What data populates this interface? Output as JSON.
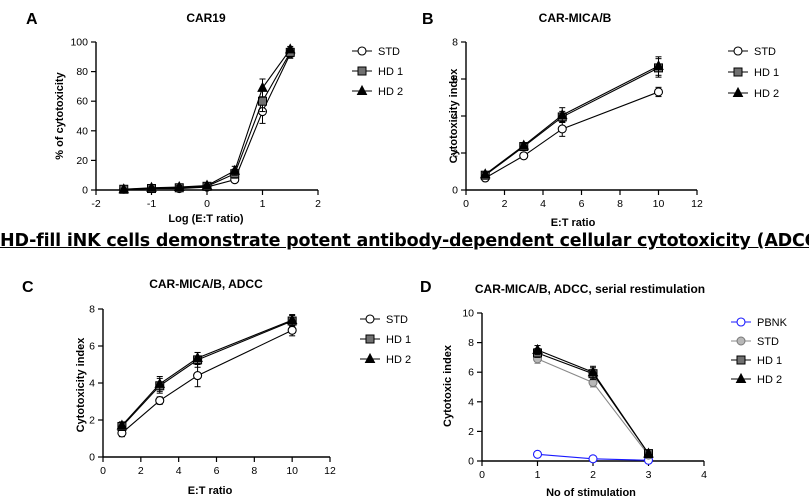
{
  "heading": "HD-fill iNK cells demonstrate potent antibody-dependent cellular cytotoxicity (ADCC)",
  "chart_data": [
    {
      "panel": "A",
      "type": "line",
      "title": "CAR19",
      "xlabel": "Log (E:T ratio)",
      "ylabel": "% of cytotoxicity",
      "xlim": [
        -2,
        2
      ],
      "ylim": [
        0,
        100
      ],
      "xticks": [
        -2,
        -1,
        0,
        1,
        2
      ],
      "yticks": [
        0,
        20,
        40,
        60,
        80,
        100
      ],
      "xtick_labels": [
        "-2",
        "-1",
        "0",
        "1",
        "2"
      ],
      "ytick_labels": [
        "0",
        "20",
        "40",
        "60",
        "80",
        "100"
      ],
      "legend_position": "right",
      "series": [
        {
          "name": "STD",
          "marker": "circle-open",
          "color": "#000000",
          "x": [
            -1.5,
            -1,
            -0.5,
            0,
            0.5,
            1,
            1.5
          ],
          "values": [
            0.5,
            1,
            1,
            2,
            7,
            53,
            92
          ],
          "err": [
            0.5,
            0.5,
            0.5,
            1,
            2,
            8,
            3
          ]
        },
        {
          "name": "HD 1",
          "marker": "square",
          "color": "#000000",
          "x": [
            -1.5,
            -1,
            -0.5,
            0,
            0.5,
            1,
            1.5
          ],
          "values": [
            0.5,
            1,
            1.5,
            2.5,
            11,
            60,
            93
          ],
          "err": [
            0.5,
            0.5,
            0.5,
            1,
            3,
            7,
            3
          ]
        },
        {
          "name": "HD 2",
          "marker": "triangle",
          "color": "#000000",
          "x": [
            -1.5,
            -1,
            -0.5,
            0,
            0.5,
            1,
            1.5
          ],
          "values": [
            0.5,
            1.5,
            2,
            3,
            13,
            69,
            95
          ],
          "err": [
            0.5,
            0.5,
            1,
            1,
            3,
            6,
            2
          ]
        }
      ]
    },
    {
      "panel": "B",
      "type": "line",
      "title": "CAR-MICA/B",
      "xlabel": "E:T ratio",
      "ylabel": "Cytotoxicity index",
      "xlim": [
        0,
        12
      ],
      "ylim": [
        0,
        8
      ],
      "xticks": [
        0,
        2,
        4,
        6,
        8,
        10,
        12
      ],
      "yticks": [
        0,
        2,
        4,
        6,
        8
      ],
      "xtick_labels": [
        "0",
        "2",
        "4",
        "6",
        "8",
        "10",
        "12"
      ],
      "ytick_labels": [
        "0",
        "2",
        "4",
        "6",
        "8"
      ],
      "legend_position": "right",
      "series": [
        {
          "name": "STD",
          "marker": "circle-open",
          "color": "#000000",
          "x": [
            1,
            3,
            5,
            10
          ],
          "values": [
            0.65,
            1.85,
            3.3,
            5.3
          ],
          "err": [
            0.1,
            0.15,
            0.4,
            0.25
          ]
        },
        {
          "name": "HD 1",
          "marker": "square",
          "color": "#000000",
          "x": [
            1,
            3,
            5,
            10
          ],
          "values": [
            0.8,
            2.35,
            3.95,
            6.6
          ],
          "err": [
            0.1,
            0.1,
            0.3,
            0.5
          ]
        },
        {
          "name": "HD 2",
          "marker": "triangle",
          "color": "#000000",
          "x": [
            1,
            3,
            5,
            10
          ],
          "values": [
            0.85,
            2.4,
            4.05,
            6.7
          ],
          "err": [
            0.1,
            0.1,
            0.4,
            0.5
          ]
        }
      ]
    },
    {
      "panel": "C",
      "type": "line",
      "title": "CAR-MICA/B, ADCC",
      "xlabel": "E:T ratio",
      "ylabel": "Cytotoxicity index",
      "xlim": [
        0,
        12
      ],
      "ylim": [
        0,
        8
      ],
      "xticks": [
        0,
        2,
        4,
        6,
        8,
        10,
        12
      ],
      "yticks": [
        0,
        2,
        4,
        6,
        8
      ],
      "xtick_labels": [
        "0",
        "2",
        "4",
        "6",
        "8",
        "10",
        "12"
      ],
      "ytick_labels": [
        "0",
        "2",
        "4",
        "6",
        "8"
      ],
      "legend_position": "right",
      "series": [
        {
          "name": "STD",
          "marker": "circle-open",
          "color": "#000000",
          "x": [
            1,
            3,
            5,
            10
          ],
          "values": [
            1.3,
            3.05,
            4.4,
            6.85
          ],
          "err": [
            0.2,
            0.2,
            0.6,
            0.3
          ]
        },
        {
          "name": "HD 1",
          "marker": "square",
          "color": "#000000",
          "x": [
            1,
            3,
            5,
            10
          ],
          "values": [
            1.65,
            3.85,
            5.25,
            7.35
          ],
          "err": [
            0.2,
            0.4,
            0.4,
            0.3
          ]
        },
        {
          "name": "HD 2",
          "marker": "triangle",
          "color": "#000000",
          "x": [
            1,
            3,
            5,
            10
          ],
          "values": [
            1.7,
            3.95,
            5.35,
            7.4
          ],
          "err": [
            0.2,
            0.4,
            0.3,
            0.3
          ]
        }
      ]
    },
    {
      "panel": "D",
      "type": "line",
      "title": "CAR-MICA/B, ADCC, serial restimulation",
      "xlabel": "No of stimulation",
      "ylabel": "Cytotoxic index",
      "xlim": [
        0,
        4
      ],
      "ylim": [
        0,
        10
      ],
      "xticks": [
        0,
        1,
        2,
        3,
        4
      ],
      "yticks": [
        0,
        2,
        4,
        6,
        8,
        10
      ],
      "xtick_labels": [
        "0",
        "1",
        "2",
        "3",
        "4"
      ],
      "ytick_labels": [
        "0",
        "2",
        "4",
        "6",
        "8",
        "10"
      ],
      "legend_position": "right",
      "series": [
        {
          "name": "PBNK",
          "marker": "circle-open",
          "color": "#1a1aff",
          "x": [
            1,
            2,
            3
          ],
          "values": [
            0.45,
            0.15,
            0.05
          ],
          "err": [
            0,
            0,
            0
          ]
        },
        {
          "name": "STD",
          "marker": "circle-gray",
          "color": "#888888",
          "x": [
            1,
            2,
            3
          ],
          "values": [
            6.9,
            5.3,
            0.4
          ],
          "err": [
            0.3,
            0.3,
            0.1
          ]
        },
        {
          "name": "HD 1",
          "marker": "square",
          "color": "#000000",
          "x": [
            1,
            2,
            3
          ],
          "values": [
            7.3,
            5.9,
            0.5
          ],
          "err": [
            0.3,
            0.4,
            0.1
          ]
        },
        {
          "name": "HD 2",
          "marker": "triangle",
          "color": "#000000",
          "x": [
            1,
            2,
            3
          ],
          "values": [
            7.5,
            6.0,
            0.5
          ],
          "err": [
            0.3,
            0.4,
            0.1
          ]
        }
      ]
    }
  ]
}
